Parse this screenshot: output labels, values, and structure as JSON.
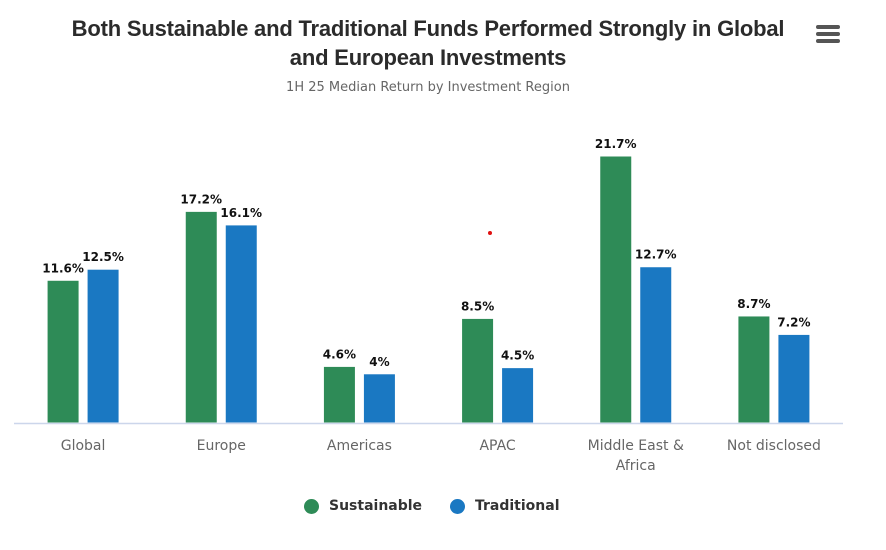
{
  "header": {
    "title_line1": "Both Sustainable and Traditional Funds Performed Strongly in Global",
    "title_line2": "and European Investments",
    "subtitle": "1H 25 Median Return by Investment Region",
    "menu_icon": "hamburger-menu-icon"
  },
  "chart_data": {
    "type": "bar",
    "title": "Both Sustainable and Traditional Funds Performed Strongly in Global and European Investments",
    "subtitle": "1H 25 Median Return by Investment Region",
    "xlabel": "",
    "ylabel": "",
    "categories": [
      "Global",
      "Europe",
      "Americas",
      "APAC",
      "Middle East & Africa",
      "Not disclosed"
    ],
    "category_lines": [
      [
        "Global"
      ],
      [
        "Europe"
      ],
      [
        "Americas"
      ],
      [
        "APAC"
      ],
      [
        "Middle East &",
        "Africa"
      ],
      [
        "Not disclosed"
      ]
    ],
    "series": [
      {
        "name": "Sustainable",
        "color": "#2e8b57",
        "values": [
          11.6,
          17.2,
          4.6,
          8.5,
          21.7,
          8.7
        ],
        "labels": [
          "11.6%",
          "17.2%",
          "4.6%",
          "8.5%",
          "21.7%",
          "8.7%"
        ]
      },
      {
        "name": "Traditional",
        "color": "#1a78c2",
        "values": [
          12.5,
          16.1,
          4,
          4.5,
          12.7,
          7.2
        ],
        "labels": [
          "12.5%",
          "16.1%",
          "4%",
          "4.5%",
          "12.7%",
          "7.2%"
        ]
      }
    ],
    "ylim": [
      0,
      21.7
    ],
    "grid": false,
    "y_axis_visible": false,
    "legend": "bottom-center",
    "axis_color": "#ccd6eb"
  },
  "legend": {
    "items": [
      {
        "label": "Sustainable",
        "color": "#2e8b57"
      },
      {
        "label": "Traditional",
        "color": "#1a78c2"
      }
    ]
  }
}
